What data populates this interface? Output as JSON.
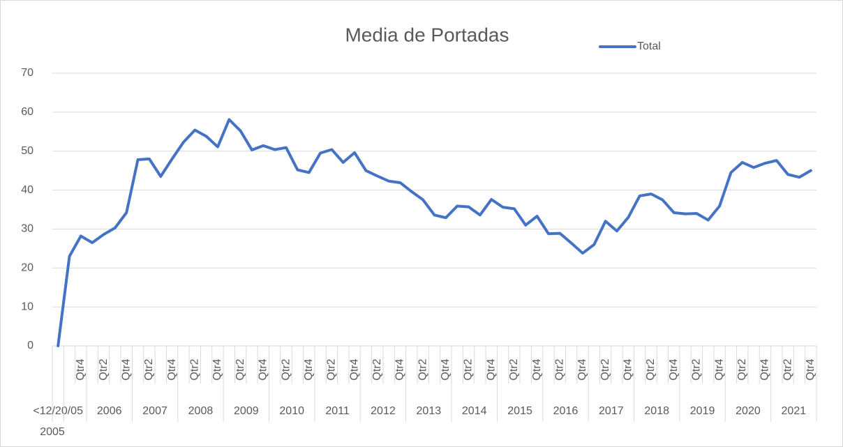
{
  "chart_data": {
    "type": "line",
    "title": "Media de Portadas",
    "category_groups": [
      {
        "label": "<12/20/05",
        "categories": [
          null
        ]
      },
      {
        "label": "2005",
        "categories": [
          null,
          "Qtr4"
        ]
      },
      {
        "label": "2006",
        "categories": [
          null,
          "Qtr2",
          null,
          "Qtr4"
        ]
      },
      {
        "label": "2007",
        "categories": [
          null,
          "Qtr2",
          null,
          "Qtr4"
        ]
      },
      {
        "label": "2008",
        "categories": [
          null,
          "Qtr2",
          null,
          "Qtr4"
        ]
      },
      {
        "label": "2009",
        "categories": [
          null,
          "Qtr2",
          null,
          "Qtr4"
        ]
      },
      {
        "label": "2010",
        "categories": [
          null,
          "Qtr2",
          null,
          "Qtr4"
        ]
      },
      {
        "label": "2011",
        "categories": [
          null,
          "Qtr2",
          null,
          "Qtr4"
        ]
      },
      {
        "label": "2012",
        "categories": [
          null,
          "Qtr2",
          null,
          "Qtr4"
        ]
      },
      {
        "label": "2013",
        "categories": [
          null,
          "Qtr2",
          null,
          "Qtr4"
        ]
      },
      {
        "label": "2014",
        "categories": [
          null,
          "Qtr2",
          null,
          "Qtr4"
        ]
      },
      {
        "label": "2015",
        "categories": [
          null,
          "Qtr2",
          null,
          "Qtr4"
        ]
      },
      {
        "label": "2016",
        "categories": [
          null,
          "Qtr2",
          null,
          "Qtr4"
        ]
      },
      {
        "label": "2017",
        "categories": [
          null,
          "Qtr2",
          null,
          "Qtr4"
        ]
      },
      {
        "label": "2018",
        "categories": [
          null,
          "Qtr2",
          null,
          "Qtr4"
        ]
      },
      {
        "label": "2019",
        "categories": [
          null,
          "Qtr2",
          null,
          "Qtr4"
        ]
      },
      {
        "label": "2020",
        "categories": [
          null,
          "Qtr2",
          null,
          "Qtr4"
        ]
      },
      {
        "label": "2021",
        "categories": [
          null,
          "Qtr2",
          null,
          "Qtr4"
        ]
      }
    ],
    "series": [
      {
        "name": "Total",
        "color": "#4472c4",
        "values": [
          0,
          23,
          28.2,
          26.5,
          28.6,
          30.3,
          34.2,
          47.8,
          48,
          43.5,
          48,
          52.3,
          55.4,
          53.8,
          51.1,
          58.1,
          55.2,
          50.3,
          51.4,
          50.4,
          50.9,
          45.2,
          44.5,
          49.5,
          50.4,
          47.1,
          49.6,
          45,
          43.6,
          42.3,
          41.9,
          39.6,
          37.5,
          33.6,
          32.9,
          35.9,
          35.7,
          33.6,
          37.6,
          35.6,
          35.2,
          31,
          33.3,
          28.8,
          28.9,
          26.4,
          23.8,
          26,
          32,
          29.5,
          33,
          38.5,
          39,
          37.5,
          34.2,
          33.9,
          34,
          32.3,
          35.9,
          44.5,
          47.1,
          45.8,
          46.9,
          47.6,
          44,
          43.3,
          45
        ]
      }
    ],
    "ylim": [
      0,
      70
    ],
    "yticks": [
      0,
      10,
      20,
      30,
      40,
      50,
      60,
      70
    ],
    "grid": true,
    "legend": "top-right"
  }
}
